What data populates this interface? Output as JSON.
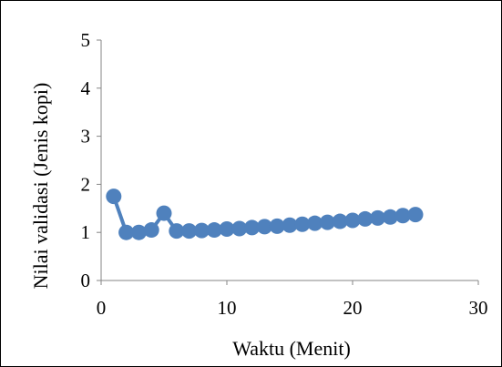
{
  "chart_data": {
    "type": "scatter",
    "title": "",
    "xlabel": "Waktu (Menit)",
    "ylabel": "Nilai validasi (Jenis kopi)",
    "xlim": [
      0,
      30
    ],
    "ylim": [
      0,
      5
    ],
    "x_ticks": [
      "0",
      "10",
      "20",
      "30"
    ],
    "y_ticks": [
      "0",
      "1",
      "2",
      "3",
      "4",
      "5"
    ],
    "grid": false,
    "legend": "none",
    "series": [
      {
        "color": "#4f81bd",
        "x": [
          1,
          2,
          3,
          4,
          5,
          6,
          7,
          8,
          9,
          10,
          11,
          12,
          13,
          14,
          15,
          16,
          17,
          18,
          19,
          20,
          21,
          22,
          23,
          24,
          25
        ],
        "y": [
          1.75,
          1.0,
          1.0,
          1.05,
          1.4,
          1.03,
          1.03,
          1.04,
          1.05,
          1.07,
          1.08,
          1.1,
          1.12,
          1.13,
          1.15,
          1.17,
          1.19,
          1.21,
          1.23,
          1.25,
          1.28,
          1.3,
          1.32,
          1.35,
          1.37
        ]
      }
    ]
  }
}
